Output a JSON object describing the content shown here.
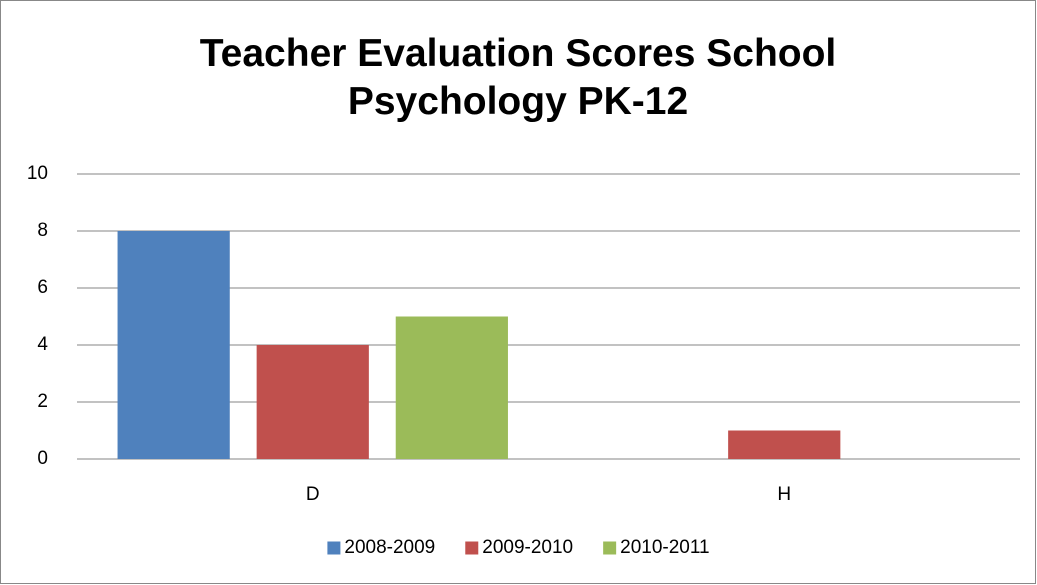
{
  "chart_data": {
    "type": "bar",
    "title": "Teacher Evaluation Scores School Psychology PK-12",
    "categories": [
      "D",
      "H"
    ],
    "series": [
      {
        "name": "2008-2009",
        "color": "#4f81bd",
        "values": [
          8,
          0
        ]
      },
      {
        "name": "2009-2010",
        "color": "#c0504d",
        "values": [
          4,
          1
        ]
      },
      {
        "name": "2010-2011",
        "color": "#9bbb59",
        "values": [
          5,
          0
        ]
      }
    ],
    "ylim": [
      0,
      10
    ],
    "yticks": [
      0,
      2,
      4,
      6,
      8,
      10
    ],
    "grid": true,
    "legend": "bottom"
  }
}
